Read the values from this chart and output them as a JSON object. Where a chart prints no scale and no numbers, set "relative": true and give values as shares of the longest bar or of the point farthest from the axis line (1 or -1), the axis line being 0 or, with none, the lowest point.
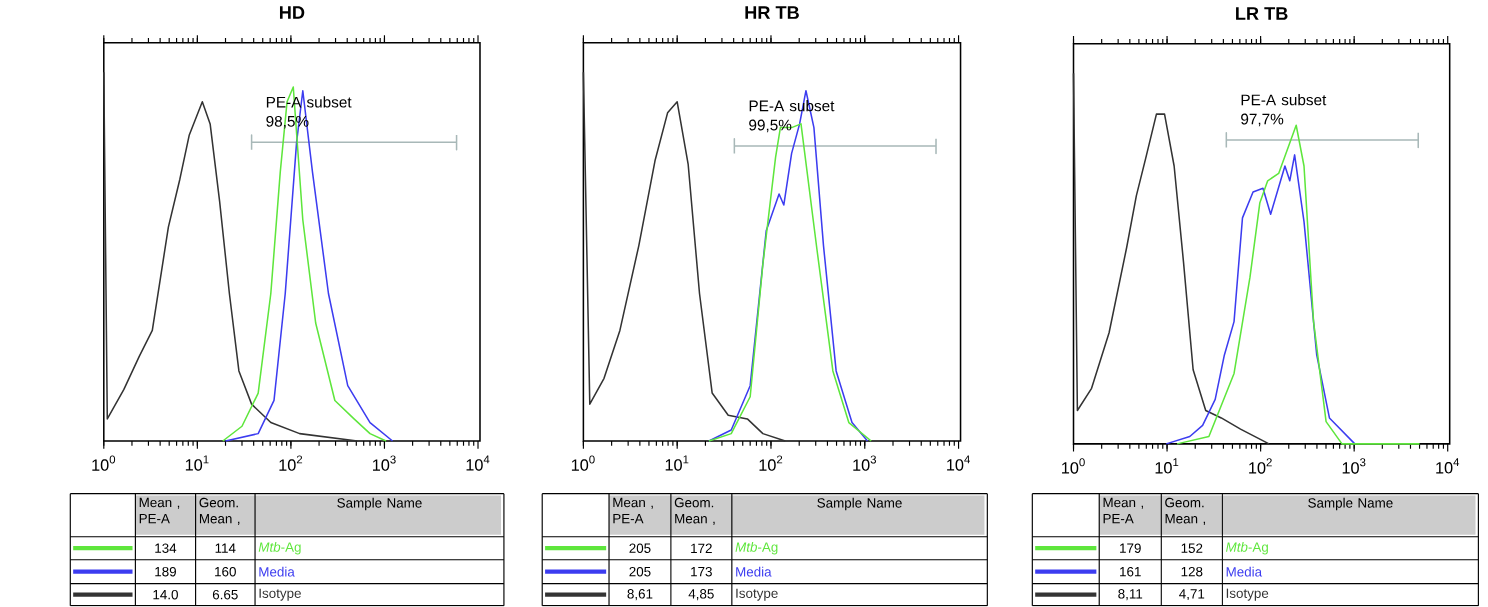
{
  "chart_data": [
    {
      "type": "line",
      "title": "HD",
      "relative": true,
      "log": "x",
      "legend": "bottom",
      "xlim": [
        1,
        10500
      ],
      "xticks": [
        {
          "value": 1,
          "label": "10$^{0}$"
        },
        {
          "value": 10,
          "label": "10$^{1}$"
        },
        {
          "value": 100,
          "label": "10$^{2}$"
        },
        {
          "value": 1000,
          "label": "10$^{3}$"
        },
        {
          "value": 10000,
          "label": "10$^{4}$"
        }
      ],
      "series": [
        {
          "name": "*Mtb*-Ag",
          "color": "#5ee63c",
          "x": [
            18.7,
            30,
            44.7,
            61,
            77,
            91,
            106,
            134,
            184,
            295,
            473,
            701,
            1040
          ],
          "values": [
            0,
            0.04,
            0.13,
            0.4,
            0.73,
            0.92,
            0.96,
            0.6,
            0.32,
            0.11,
            0.06,
            0.02,
            0
          ]
        },
        {
          "name": "Media",
          "color": "#3c3cf0",
          "x": [
            20,
            44.7,
            66,
            87,
            115,
            134,
            170,
            252,
            405,
            701,
            1220
          ],
          "values": [
            0,
            0.02,
            0.11,
            0.4,
            0.81,
            0.95,
            0.73,
            0.4,
            0.15,
            0.05,
            0
          ]
        },
        {
          "name": "Isotype",
          "color": "#333333",
          "x": [
            1,
            1.09,
            1.64,
            2.4,
            3.3,
            4.9,
            6.5,
            8.2,
            11.3,
            13.7,
            17.3,
            22,
            27.8,
            38,
            61,
            124,
            512
          ],
          "values": [
            1.0,
            0.06,
            0.14,
            0.23,
            0.3,
            0.58,
            0.71,
            0.83,
            0.92,
            0.86,
            0.65,
            0.4,
            0.19,
            0.1,
            0.05,
            0.02,
            0
          ]
        },
        {
          "type": "line",
          "color": "#a8b8b8",
          "x": [
            38,
            38,
            38,
            5900,
            5900,
            5900
          ],
          "values": [
            0.79,
            0.83,
            0.81,
            0.81,
            0.79,
            0.83
          ]
        }
      ],
      "annotations": [
        "Mean , PE-A",
        "Geom. Mean ,",
        "Sample Name",
        "134",
        "114",
        "189",
        "160",
        "14.0",
        "6.65",
        {
          "text": "PE-A subset 98,5%",
          "x": 38,
          "y": 0.81
        }
      ]
    },
    {
      "type": "line",
      "title": "HR TB",
      "relative": true,
      "log": "x",
      "legend": "bottom",
      "xlim": [
        1,
        10500
      ],
      "xticks": [
        {
          "value": 1,
          "label": "10$^{0}$"
        },
        {
          "value": 10,
          "label": "10$^{1}$"
        },
        {
          "value": 100,
          "label": "10$^{2}$"
        },
        {
          "value": 1000,
          "label": "10$^{3}$"
        },
        {
          "value": 10000,
          "label": "10$^{4}$"
        }
      ],
      "series": [
        {
          "name": "*Mtb*-Ag",
          "color": "#5ee63c",
          "x": [
            21.8,
            37.7,
            60,
            82,
            112,
            126,
            166,
            209,
            309,
            457,
            676,
            1170
          ],
          "values": [
            0,
            0.02,
            0.12,
            0.48,
            0.77,
            0.85,
            0.85,
            0.86,
            0.52,
            0.19,
            0.05,
            0
          ]
        },
        {
          "name": "Media",
          "color": "#3c3cf0",
          "x": [
            21.8,
            37.7,
            60,
            89,
            122,
            137,
            166,
            202,
            236,
            287,
            363,
            495,
            731,
            1070
          ],
          "values": [
            0,
            0.03,
            0.15,
            0.57,
            0.67,
            0.64,
            0.78,
            0.86,
            0.95,
            0.85,
            0.53,
            0.19,
            0.05,
            0
          ]
        },
        {
          "name": "Isotype",
          "color": "#333333",
          "x": [
            1,
            1.17,
            1.66,
            2.45,
            3.9,
            5.8,
            7.9,
            10,
            13.1,
            17.3,
            23.6,
            35,
            56,
            82,
            142
          ],
          "values": [
            1.0,
            0.1,
            0.17,
            0.3,
            0.53,
            0.76,
            0.89,
            0.92,
            0.75,
            0.4,
            0.13,
            0.07,
            0.06,
            0.02,
            0
          ]
        },
        {
          "type": "line",
          "color": "#a8b8b8",
          "x": [
            40.7,
            40.7,
            40.7,
            5750,
            5750,
            5750
          ],
          "values": [
            0.78,
            0.82,
            0.8,
            0.8,
            0.78,
            0.82
          ]
        }
      ],
      "annotations": [
        "Mean , PE-A",
        "Geom. Mean ,",
        "Sample Name",
        "205",
        "172",
        "205",
        "173",
        "8,61",
        "4,85",
        {
          "text": "PE-A subset 99,5%",
          "x": 40.7,
          "y": 0.8
        }
      ]
    },
    {
      "type": "line",
      "title": "LR TB",
      "relative": true,
      "log": "x",
      "legend": "bottom",
      "xlim": [
        1,
        10500
      ],
      "xticks": [
        {
          "value": 1,
          "label": "10$^{0}$"
        },
        {
          "value": 10,
          "label": "10$^{1}$"
        },
        {
          "value": 100,
          "label": "10$^{2}$"
        },
        {
          "value": 1000,
          "label": "10$^{3}$"
        },
        {
          "value": 10000,
          "label": "10$^{4}$"
        }
      ],
      "series": [
        {
          "name": "*Mtb*-Ag",
          "color": "#5ee63c",
          "x": [
            12.8,
            28,
            52,
            77,
            98,
            119,
            156,
            240,
            291,
            368,
            501,
            741,
            5000
          ],
          "values": [
            0,
            0.02,
            0.19,
            0.45,
            0.65,
            0.71,
            0.73,
            0.86,
            0.75,
            0.33,
            0.06,
            0,
            0
          ]
        },
        {
          "name": "Media",
          "color": "#3c3cf0",
          "x": [
            9.8,
            17.5,
            24,
            32.7,
            41,
            52,
            64,
            83,
            106,
            128,
            182,
            205,
            231,
            291,
            398,
            544,
            1016
          ],
          "values": [
            0,
            0.02,
            0.05,
            0.12,
            0.24,
            0.33,
            0.61,
            0.68,
            0.69,
            0.62,
            0.75,
            0.71,
            0.78,
            0.6,
            0.24,
            0.07,
            0
          ]
        },
        {
          "name": "Isotype",
          "color": "#333333",
          "x": [
            1,
            1.1,
            1.56,
            2.4,
            3.7,
            4.7,
            5.9,
            7.7,
            9.4,
            11.9,
            15,
            19,
            25.9,
            38,
            61,
            123
          ],
          "values": [
            1.0,
            0.09,
            0.15,
            0.3,
            0.53,
            0.67,
            0.77,
            0.89,
            0.89,
            0.75,
            0.49,
            0.2,
            0.09,
            0.07,
            0.04,
            0
          ]
        },
        {
          "type": "line",
          "color": "#a8b8b8",
          "x": [
            43,
            43,
            43,
            4840,
            4840,
            4840
          ],
          "values": [
            0.8,
            0.84,
            0.82,
            0.82,
            0.8,
            0.84
          ]
        }
      ],
      "annotations": [
        "Mean , PE-A",
        "Geom. Mean ,",
        "Sample Name",
        "179",
        "152",
        "161",
        "128",
        "8,11",
        "4,71",
        {
          "text": "PE-A subset 97,7%",
          "x": 43,
          "y": 0.82
        }
      ]
    }
  ]
}
